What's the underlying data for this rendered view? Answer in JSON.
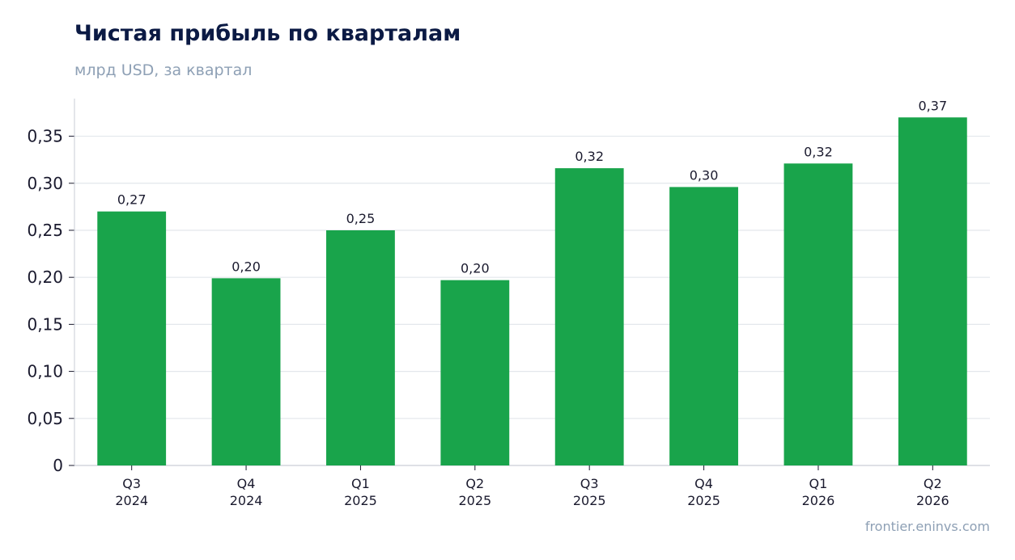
{
  "chart_data": {
    "type": "bar",
    "title": "Чистая прибыль по кварталам",
    "subtitle": "млрд USD, за квартал",
    "source": "frontier.eninvs.com",
    "categories": [
      [
        "Q3",
        "2024"
      ],
      [
        "Q4",
        "2024"
      ],
      [
        "Q1",
        "2025"
      ],
      [
        "Q2",
        "2025"
      ],
      [
        "Q3",
        "2025"
      ],
      [
        "Q4",
        "2025"
      ],
      [
        "Q1",
        "2026"
      ],
      [
        "Q2",
        "2026"
      ]
    ],
    "values": [
      0.27,
      0.199,
      0.25,
      0.197,
      0.316,
      0.296,
      0.321,
      0.37
    ],
    "data_labels": [
      "0,27",
      "0,20",
      "0,25",
      "0,20",
      "0,32",
      "0,30",
      "0,32",
      "0,37"
    ],
    "ylim": [
      0,
      0.39
    ],
    "yticks": [
      0,
      0.05,
      0.1,
      0.15,
      0.2,
      0.25,
      0.3,
      0.35
    ],
    "ytick_labels": [
      "0",
      "0,05",
      "0,10",
      "0,15",
      "0,20",
      "0,25",
      "0,30",
      "0,35"
    ],
    "xlabel": "",
    "ylabel": "",
    "grid": true,
    "colors": {
      "bar": "#19a44b",
      "grid": "#e3e7ec",
      "axis": "#c9ced6",
      "title": "#0b1a44",
      "muted": "#8ea0b5",
      "text": "#1a1a2e"
    }
  }
}
